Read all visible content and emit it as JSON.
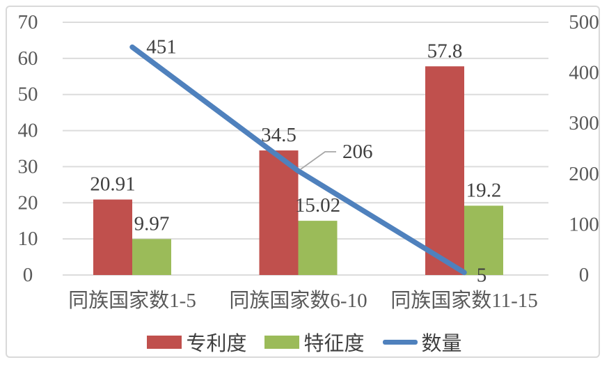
{
  "chart_data": {
    "type": "combo",
    "title": "",
    "categories": [
      "同族国家数1-5",
      "同族国家数6-10",
      "同族国家数11-15"
    ],
    "series": [
      {
        "name": "专利度",
        "type": "bar",
        "axis": "left",
        "color": "#c0504d",
        "values": [
          20.91,
          34.5,
          57.8
        ],
        "labels": [
          "20.91",
          "34.5",
          "57.8"
        ]
      },
      {
        "name": "特征度",
        "type": "bar",
        "axis": "left",
        "color": "#9bbb59",
        "values": [
          9.97,
          15.02,
          19.2
        ],
        "labels": [
          "9.97",
          "15.02",
          "19.2"
        ]
      },
      {
        "name": "数量",
        "type": "line",
        "axis": "right",
        "color": "#4f81bd",
        "values": [
          451,
          206,
          5
        ],
        "labels": [
          "451",
          "206",
          "5"
        ]
      }
    ],
    "left_axis": {
      "min": 0,
      "max": 70,
      "step": 10
    },
    "right_axis": {
      "min": 0,
      "max": 500,
      "step": 100
    },
    "grid": true,
    "legend_position": "bottom",
    "label_callouts": {
      "series": "数量",
      "category_index": 1,
      "label": "206"
    },
    "colors": {
      "gridline": "#dcdcdc",
      "axis_text": "#595959",
      "category_text": "#595959",
      "data_label_text": "#3f3f3f",
      "leader_line": "#a6a6a6",
      "frame_border": "#d9d9d9",
      "background": "#ffffff"
    }
  }
}
